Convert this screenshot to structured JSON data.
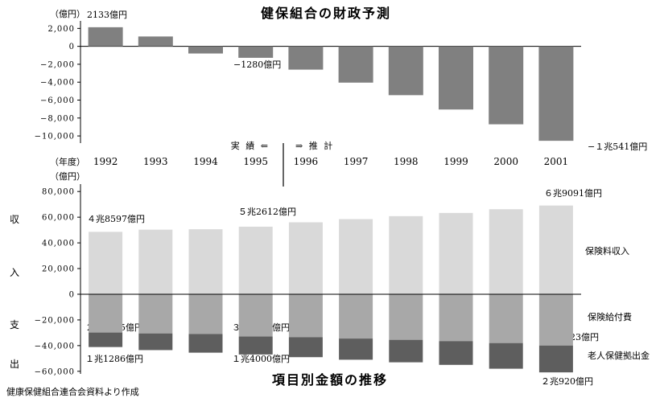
{
  "titles": {
    "top": "健保組合の財政予測",
    "bottom": "項目別金額の推移",
    "source": "健康保健組合連合会資料より作成"
  },
  "top_chart": {
    "unit_label": "（億円）",
    "year_label": "（年度）",
    "actual_label": "実 績 ⇐",
    "forecast_label": "⇒ 推 計"
  },
  "bottom_chart": {
    "unit_label": "（億円）",
    "side_labels": [
      "収",
      "入",
      "支",
      "出"
    ]
  },
  "chart_data": [
    {
      "type": "bar",
      "title": "健保組合の財政予測",
      "categories": [
        "1992",
        "1993",
        "1994",
        "1995",
        "1996",
        "1997",
        "1998",
        "1999",
        "2000",
        "2001"
      ],
      "values": [
        2133,
        1100,
        -800,
        -1280,
        -2600,
        -4050,
        -5450,
        -7050,
        -8700,
        -10541
      ],
      "ylim": [
        -10800,
        2300
      ],
      "yticks": [
        -10000,
        -8000,
        -6000,
        -4000,
        -2000,
        0,
        2000
      ],
      "ytick_labels": [
        "−10,000",
        "−8,000",
        "−6,000",
        "−4,000",
        "−2,000",
        "0",
        "2,000"
      ],
      "annotations": [
        {
          "index": 0,
          "text": "2133億円"
        },
        {
          "index": 3,
          "text": "−1280億円"
        },
        {
          "index": 9,
          "text": "−１兆541億円"
        }
      ],
      "colors": {
        "bar": "#808080"
      }
    },
    {
      "type": "bar",
      "title": "項目別金額の推移",
      "categories": [
        "1992",
        "1993",
        "1994",
        "1995",
        "1996",
        "1997",
        "1998",
        "1999",
        "2000",
        "2001"
      ],
      "ylim": [
        -62000,
        82000
      ],
      "yticks": [
        -60000,
        -40000,
        -20000,
        0,
        20000,
        40000,
        60000,
        80000
      ],
      "ytick_labels": [
        "−60,000",
        "−40,000",
        "−20,000",
        "0",
        "20,000",
        "40,000",
        "60,000",
        "80,000"
      ],
      "series": [
        {
          "name": "保険料収入",
          "values": [
            48597,
            50300,
            50600,
            52612,
            56000,
            58500,
            60800,
            63300,
            66200,
            69091
          ],
          "color": "#d9d9d9"
        },
        {
          "name": "保険給付費",
          "values": [
            -29825,
            -30500,
            -31000,
            -32921,
            -33500,
            -34500,
            -35500,
            -36500,
            -38000,
            -39923
          ],
          "color": "#a8a8a8"
        },
        {
          "name": "老人保健拠出金",
          "values": [
            -11286,
            -13000,
            -14500,
            -14000,
            -15500,
            -16500,
            -17500,
            -18500,
            -20000,
            -20920
          ],
          "color": "#5e5e5e"
        }
      ],
      "annotations": [
        {
          "text": "４兆8597億円"
        },
        {
          "text": "５兆2612億円"
        },
        {
          "text": "６兆9091億円"
        },
        {
          "text": "２兆9825億円"
        },
        {
          "text": "３兆2921億円"
        },
        {
          "text": "３兆9923億円"
        },
        {
          "text": "１兆1286億円"
        },
        {
          "text": "１兆4000億円"
        },
        {
          "text": "２兆920億円"
        }
      ]
    }
  ]
}
